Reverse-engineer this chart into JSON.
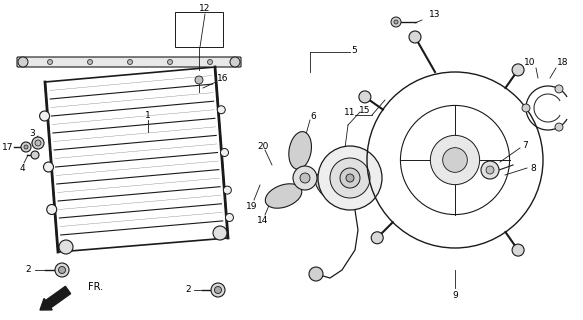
{
  "bg_color": "#ffffff",
  "fig_width": 5.83,
  "fig_height": 3.2,
  "dpi": 100,
  "line_color": "#1a1a1a",
  "text_color": "#000000",
  "font_size": 6.5
}
